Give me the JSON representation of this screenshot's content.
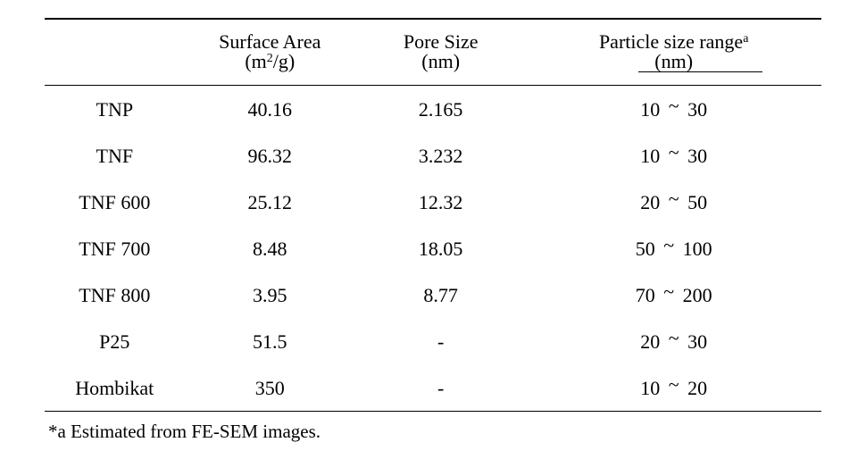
{
  "table": {
    "columns": [
      {
        "main": "",
        "unit": ""
      },
      {
        "main": "Surface Area",
        "unit_html": "(m<span class=\"super\">2</span>/g)"
      },
      {
        "main": "Pore Size",
        "unit": "(nm)"
      },
      {
        "main_html": "Particle size range<span class=\"super\">a</span>",
        "unit": "(nm)"
      }
    ],
    "rows": [
      {
        "sample": "TNP",
        "surface": "40.16",
        "pore": "2.165",
        "particle_low": "10",
        "particle_high": "30"
      },
      {
        "sample": "TNF",
        "surface": "96.32",
        "pore": "3.232",
        "particle_low": "10",
        "particle_high": "30"
      },
      {
        "sample": "TNF 600",
        "surface": "25.12",
        "pore": "12.32",
        "particle_low": "20",
        "particle_high": "50"
      },
      {
        "sample": "TNF 700",
        "surface": "8.48",
        "pore": "18.05",
        "particle_low": "50",
        "particle_high": "100"
      },
      {
        "sample": "TNF 800",
        "surface": "3.95",
        "pore": "8.77",
        "particle_low": "70",
        "particle_high": "200"
      },
      {
        "sample": "P25",
        "surface": "51.5",
        "pore": "-",
        "particle_low": "20",
        "particle_high": "30"
      },
      {
        "sample": "Hombikat",
        "surface": "350",
        "pore": "-",
        "particle_low": "10",
        "particle_high": "20"
      }
    ]
  },
  "footnote": "*a Estimated from FE-SEM images.",
  "styling": {
    "background_color": "#ffffff",
    "text_color": "#000000",
    "border_color": "#000000",
    "font_family": "Times New Roman",
    "header_fontsize": 22,
    "cell_fontsize": 22,
    "footnote_fontsize": 21,
    "top_border_width": 2,
    "inner_border_width": 1,
    "column_widths_pct": [
      18,
      22,
      22,
      38
    ],
    "tilde_separator": "~"
  }
}
